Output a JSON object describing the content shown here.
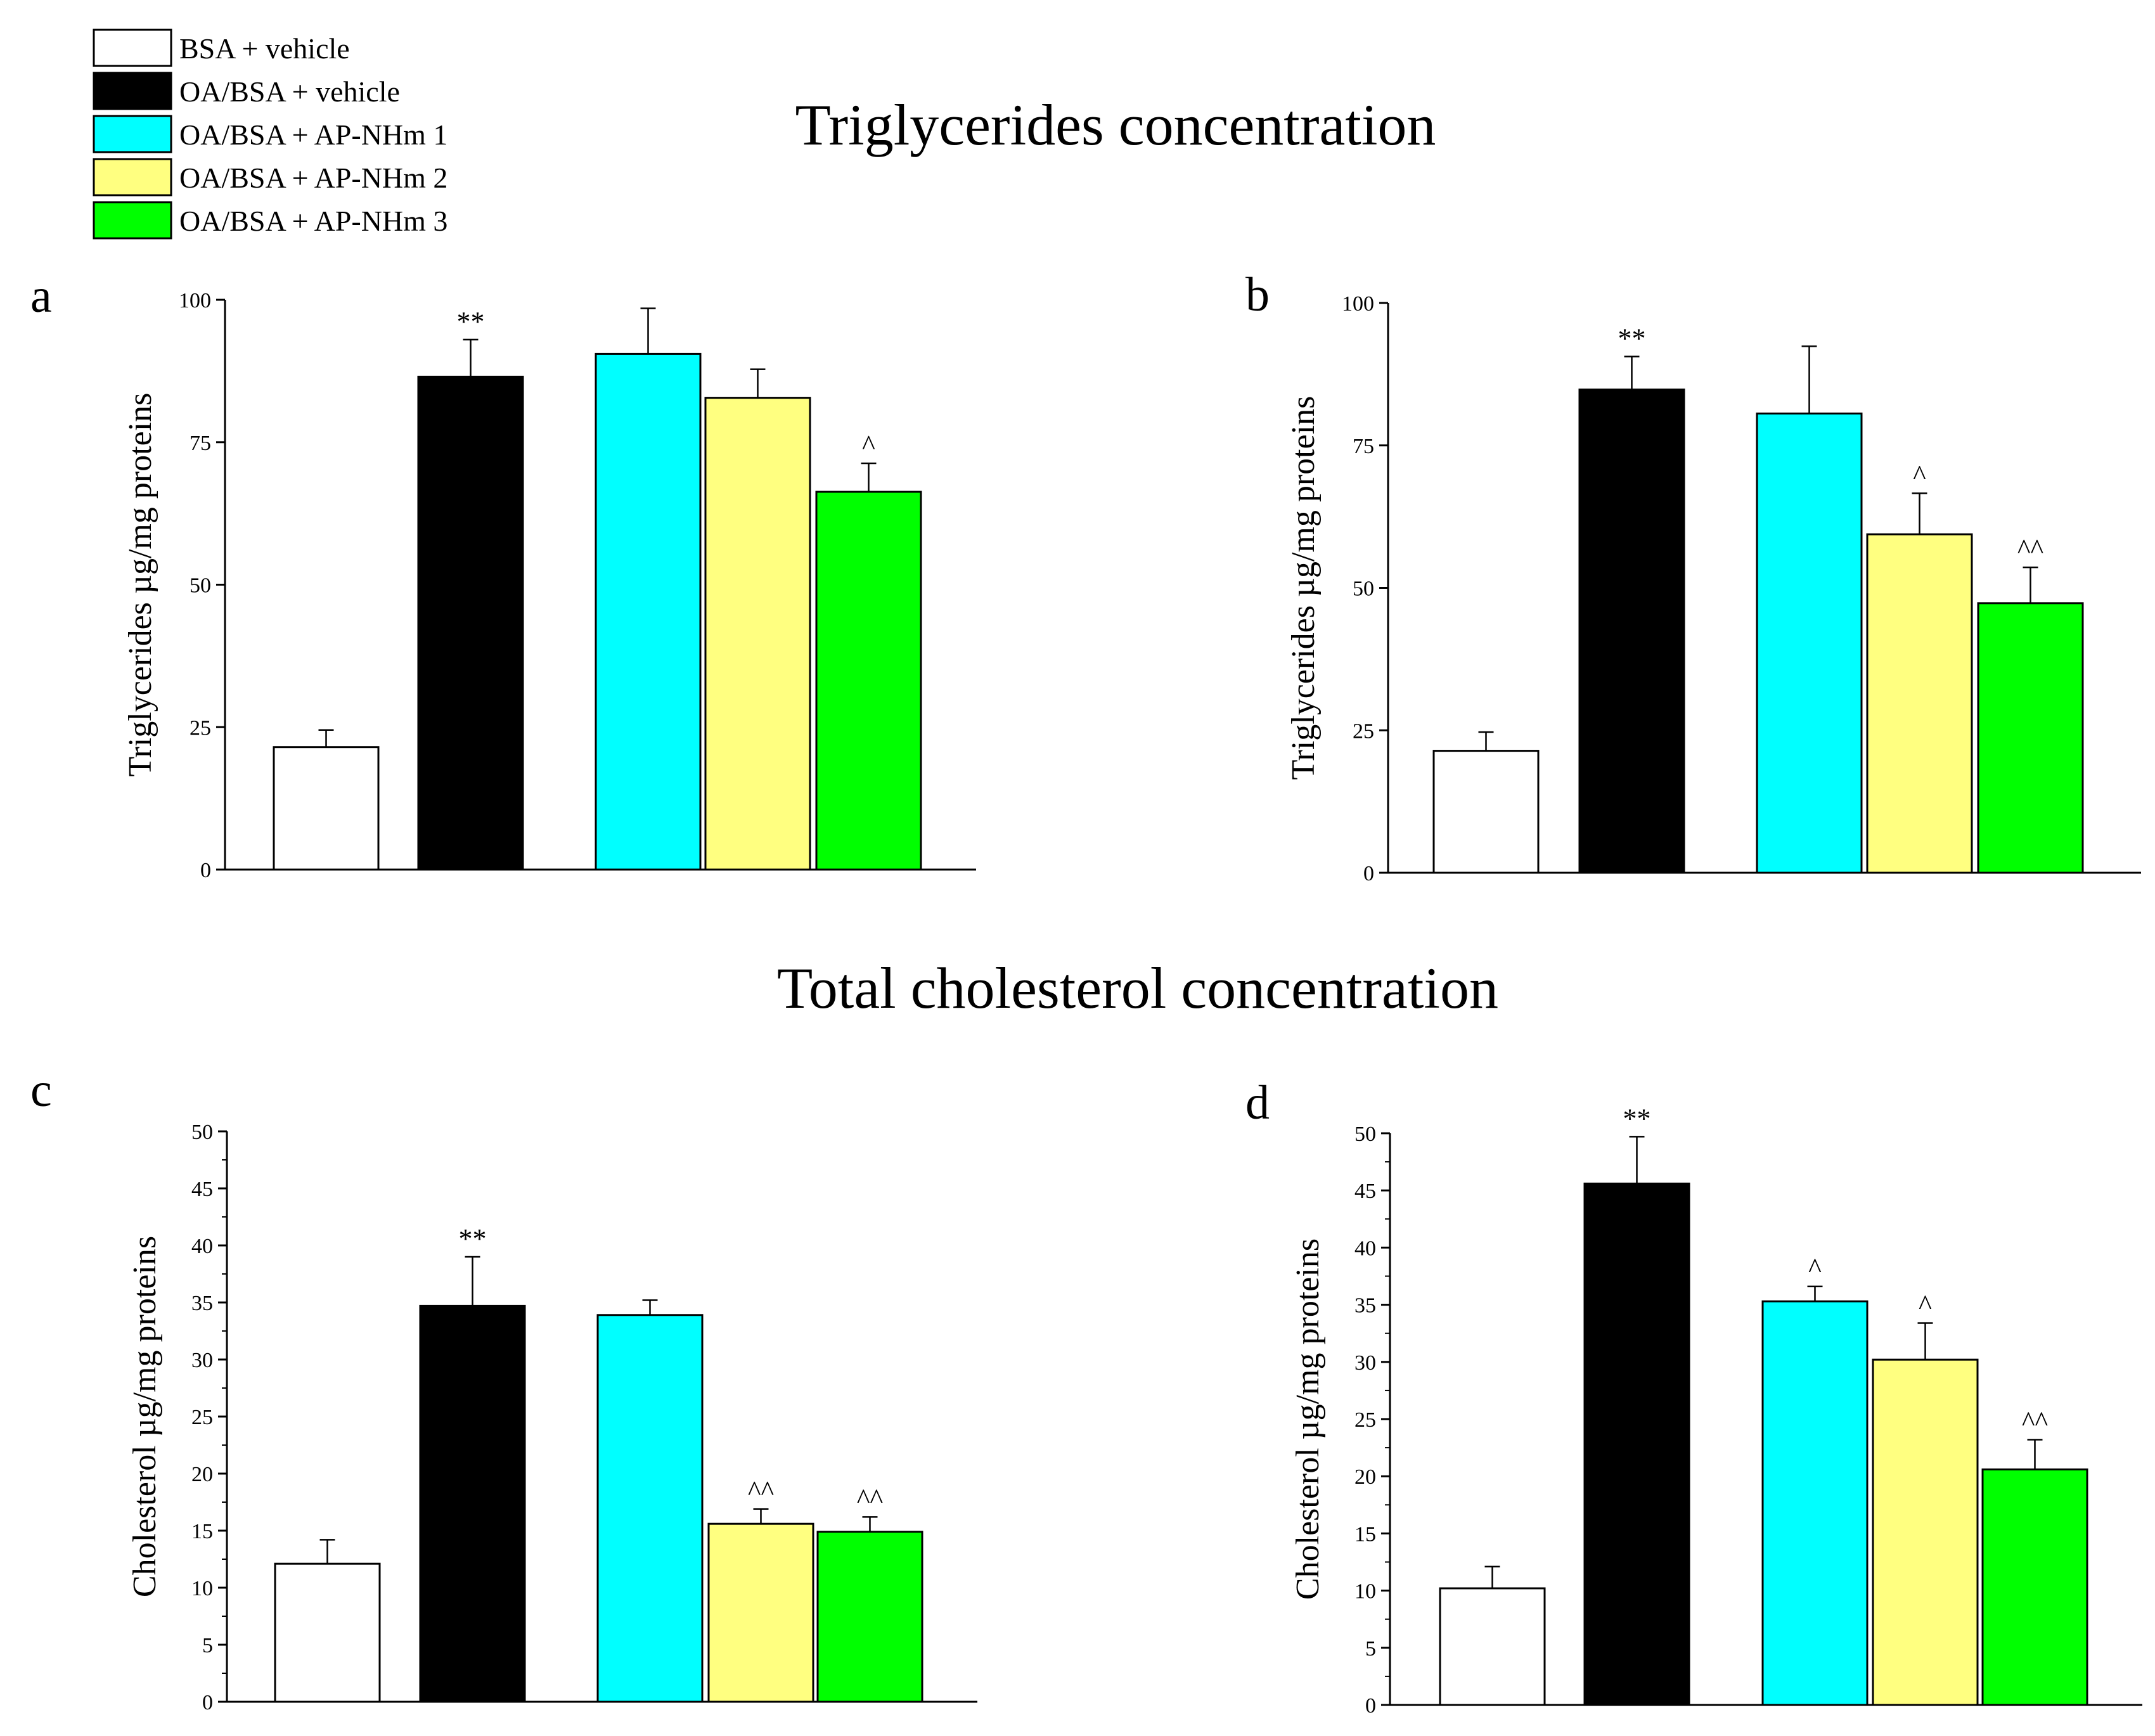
{
  "titles": {
    "triglycerides": "Triglycerides concentration",
    "cholesterol": "Total cholesterol concentration"
  },
  "legend": [
    {
      "label": "BSA + vehicle",
      "color": "#ffffff"
    },
    {
      "label": "OA/BSA + vehicle",
      "color": "#000000"
    },
    {
      "label": "OA/BSA + AP-NHm 1",
      "color": "#00ffff"
    },
    {
      "label": "OA/BSA + AP-NHm 2",
      "color": "#ffff80"
    },
    {
      "label": "OA/BSA + AP-NHm 3",
      "color": "#00ff00"
    }
  ],
  "chart_data": [
    {
      "panel": "a",
      "type": "bar",
      "ylabel": "Triglycerides µg/mg proteins",
      "ylim": [
        0,
        100
      ],
      "yticks": [
        "0",
        "25",
        "50",
        "75",
        "100"
      ],
      "minor_ticks": false,
      "categories": [
        "BSA + vehicle",
        "OA/BSA + vehicle",
        "OA/BSA + AP-NHm 1",
        "OA/BSA + AP-NHm 2",
        "OA/BSA + AP-NHm 3"
      ],
      "values": [
        21.5,
        86.5,
        90.5,
        82.8,
        66.3
      ],
      "errors": [
        3.0,
        6.5,
        8.0,
        5.0,
        5.0
      ],
      "annotations": [
        "",
        "**",
        "",
        "",
        "^"
      ]
    },
    {
      "panel": "b",
      "type": "bar",
      "ylabel": "Triglycerides µg/mg proteins",
      "ylim": [
        0,
        100
      ],
      "yticks": [
        "0",
        "25",
        "50",
        "75",
        "100"
      ],
      "minor_ticks": false,
      "categories": [
        "BSA + vehicle",
        "OA/BSA + vehicle",
        "OA/BSA + AP-NHm 1",
        "OA/BSA + AP-NHm 2",
        "OA/BSA + AP-NHm 3"
      ],
      "values": [
        21.4,
        84.8,
        80.6,
        59.4,
        47.3
      ],
      "errors": [
        3.3,
        5.8,
        11.8,
        7.2,
        6.3
      ],
      "annotations": [
        "",
        "**",
        "",
        "^",
        "^^"
      ]
    },
    {
      "panel": "c",
      "type": "bar",
      "ylabel": "Cholesterol µg/mg proteins",
      "ylim": [
        0,
        50
      ],
      "yticks": [
        "0",
        "5",
        "10",
        "15",
        "20",
        "25",
        "30",
        "35",
        "40",
        "45",
        "50"
      ],
      "minor_ticks": true,
      "categories": [
        "BSA + vehicle",
        "OA/BSA + vehicle",
        "OA/BSA + AP-NHm 1",
        "OA/BSA + AP-NHm 2",
        "OA/BSA + AP-NHm 3"
      ],
      "values": [
        12.1,
        34.7,
        33.9,
        15.6,
        14.9
      ],
      "errors": [
        2.1,
        4.3,
        1.3,
        1.3,
        1.3
      ],
      "annotations": [
        "",
        "**",
        "",
        "^^",
        "^^"
      ]
    },
    {
      "panel": "d",
      "type": "bar",
      "ylabel": "Cholesterol µg/mg proteins",
      "ylim": [
        0,
        50
      ],
      "yticks": [
        "0",
        "5",
        "10",
        "15",
        "20",
        "25",
        "30",
        "35",
        "40",
        "45",
        "50"
      ],
      "minor_ticks": true,
      "categories": [
        "BSA + vehicle",
        "OA/BSA + vehicle",
        "OA/BSA + AP-NHm 1",
        "OA/BSA + AP-NHm 2",
        "OA/BSA + AP-NHm 3"
      ],
      "values": [
        10.2,
        45.6,
        35.3,
        30.2,
        20.6
      ],
      "errors": [
        1.9,
        4.1,
        1.3,
        3.2,
        2.6
      ],
      "annotations": [
        "",
        "**",
        "^",
        "^",
        "^^"
      ]
    }
  ]
}
